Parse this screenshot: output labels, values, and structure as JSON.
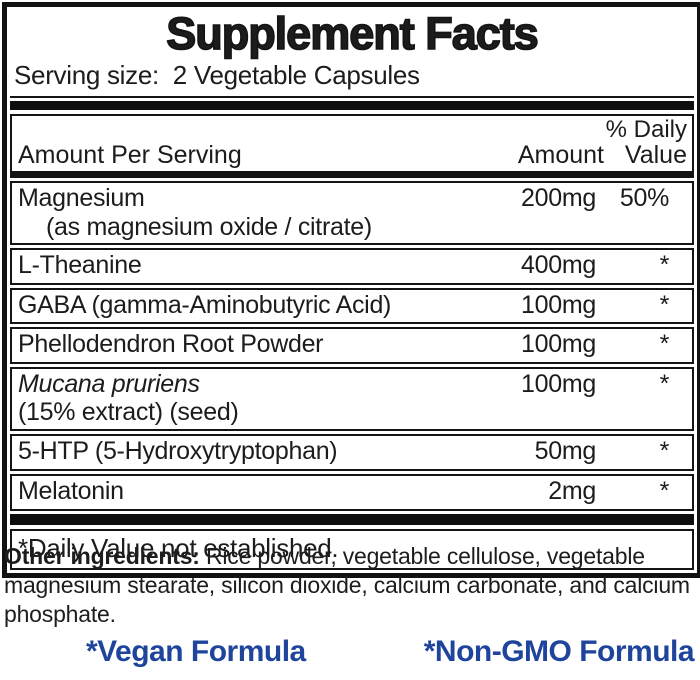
{
  "label": {
    "title": "Supplement Facts",
    "serving_size": "Serving size:  2 Vegetable Capsules",
    "header": {
      "amount_per_serving": "Amount Per Serving",
      "amount": "Amount",
      "daily_line1": "% Daily",
      "daily_line2": "Value"
    },
    "rows": [
      {
        "name": "Magnesium",
        "sub": "(as magnesium oxide / citrate)",
        "amount": "200mg",
        "dv": "50%"
      },
      {
        "name": "L-Theanine",
        "amount": "400mg",
        "dv": "*"
      },
      {
        "name": "GABA (gamma-Aminobutyric Acid)",
        "amount": "100mg",
        "dv": "*"
      },
      {
        "name": "Phellodendron Root Powder",
        "amount": "100mg",
        "dv": "*"
      },
      {
        "name": "Mucana pruriens",
        "sub": "(15% extract) (seed)",
        "amount": "100mg",
        "dv": "*"
      },
      {
        "name": "5-HTP (5-Hydroxytryptophan)",
        "amount": "50mg",
        "dv": "*"
      },
      {
        "name": "Melatonin",
        "amount": "2mg",
        "dv": "*"
      }
    ],
    "footnote": "*Daily Value not established.",
    "other_ingredients_label": "Other ingredients:",
    "other_ingredients_text": " Rice powder, vegetable cellulose, vegetable magnesium stearate, silicon dioxide, calcium carbonate, and calcium phosphate.",
    "badges": {
      "vegan": "*Vegan Formula",
      "non_gmo": "*Non-GMO Formula"
    },
    "colors": {
      "accent_blue": "#1e449b",
      "text": "#1c1c1c",
      "border": "#121212"
    }
  }
}
